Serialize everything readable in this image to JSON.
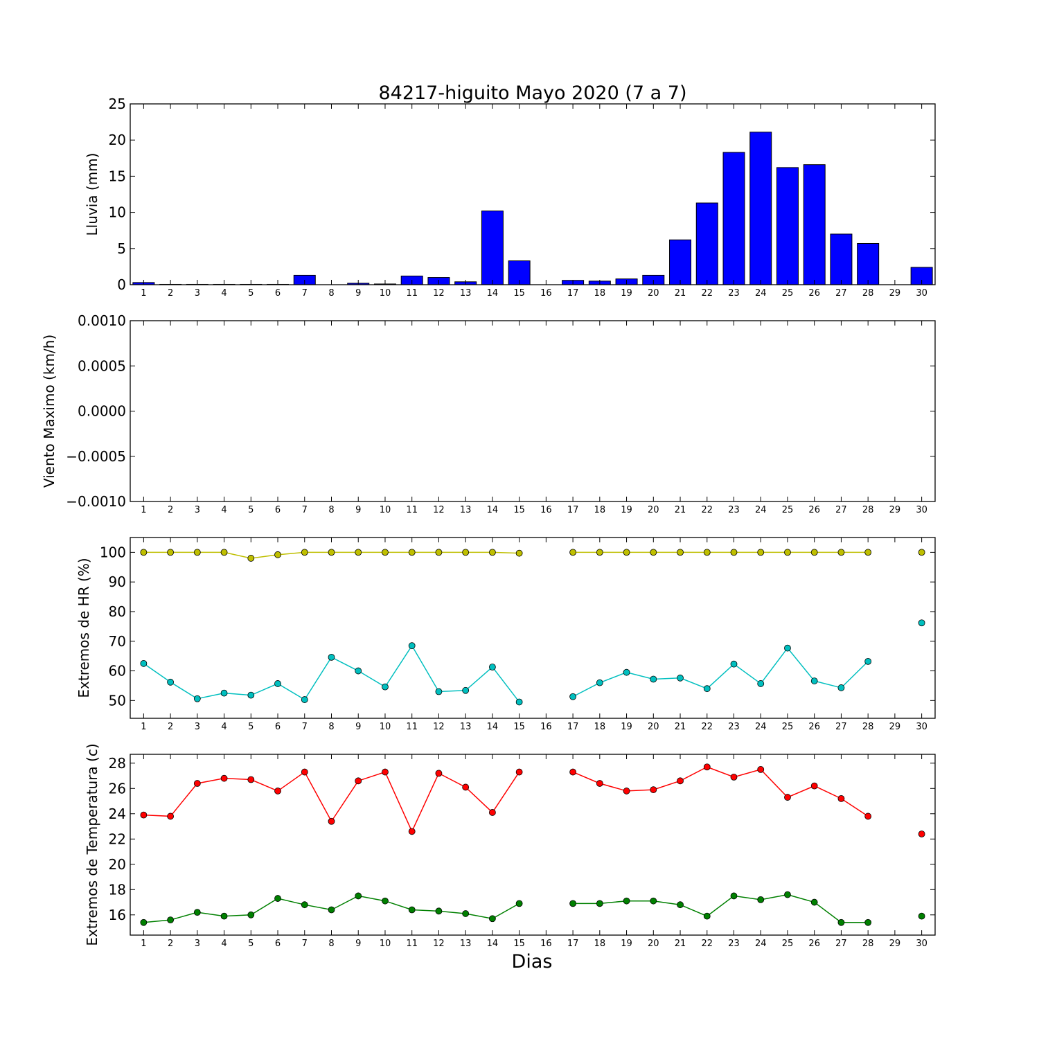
{
  "chart_data": {
    "title": "84217-higuito Mayo 2020  (7 a 7)",
    "xlabel": "Dias",
    "x_ticks": [
      "1",
      "2",
      "3",
      "4",
      "5",
      "6",
      "7",
      "8",
      "9",
      "10",
      "11",
      "12",
      "13",
      "14",
      "15",
      "16",
      "17",
      "18",
      "19",
      "20",
      "21",
      "22",
      "23",
      "24",
      "25",
      "26",
      "27",
      "28",
      "29",
      "30"
    ],
    "colors": {
      "rain": "#0000ff",
      "hr_max": "#bfbf00",
      "hr_min": "#00bfbf",
      "t_max": "#ff0000",
      "t_min": "#008000"
    },
    "panels": [
      {
        "id": "lluvia",
        "type": "bar",
        "ylabel": "Lluvia (mm)",
        "ylim": [
          0,
          25
        ],
        "yticks": [
          0,
          5,
          10,
          15,
          20,
          25
        ],
        "ytick_labels": [
          "0",
          "5",
          "10",
          "15",
          "20",
          "25"
        ],
        "series": [
          {
            "color_key": "rain",
            "x": [
              1,
              2,
              3,
              4,
              5,
              6,
              7,
              8,
              9,
              10,
              11,
              12,
              13,
              14,
              15,
              16,
              17,
              18,
              19,
              20,
              21,
              22,
              23,
              24,
              25,
              26,
              27,
              28,
              29,
              30
            ],
            "values": [
              0.3,
              0.05,
              0.05,
              0.05,
              0.05,
              0.05,
              1.3,
              0,
              0.2,
              0.1,
              1.2,
              1.0,
              0.4,
              10.2,
              3.3,
              0,
              0.6,
              0.5,
              0.8,
              1.3,
              6.2,
              11.3,
              18.3,
              21.1,
              16.2,
              16.6,
              7.0,
              5.7,
              0,
              2.4
            ]
          }
        ]
      },
      {
        "id": "viento",
        "type": "line",
        "ylabel": "Viento Maximo (km/h)",
        "ylim": [
          -0.001,
          0.001
        ],
        "yticks": [
          -0.001,
          -0.0005,
          0,
          0.0005,
          0.001
        ],
        "ytick_labels": [
          "−0.0010",
          "−0.0005",
          "0.0000",
          "0.0005",
          "0.0010"
        ],
        "series": []
      },
      {
        "id": "hr",
        "type": "line",
        "ylabel": "Extremos de HR (%)",
        "ylim": [
          44,
          105
        ],
        "yticks": [
          50,
          60,
          70,
          80,
          90,
          100
        ],
        "ytick_labels": [
          "50",
          "60",
          "70",
          "80",
          "90",
          "100"
        ],
        "series": [
          {
            "color_key": "hr_max",
            "segments": [
              {
                "x": [
                  1,
                  2,
                  3,
                  4,
                  5,
                  6,
                  7,
                  8,
                  9,
                  10,
                  11,
                  12,
                  13,
                  14,
                  15
                ],
                "values": [
                  100,
                  100,
                  100,
                  100,
                  98,
                  99.2,
                  100,
                  100,
                  100,
                  100,
                  100,
                  100,
                  100,
                  100,
                  99.7
                ]
              },
              {
                "x": [
                  17,
                  18,
                  19,
                  20,
                  21,
                  22,
                  23,
                  24,
                  25,
                  26,
                  27,
                  28
                ],
                "values": [
                  100,
                  100,
                  100,
                  100,
                  100,
                  100,
                  100,
                  100,
                  100,
                  100,
                  100,
                  100
                ]
              },
              {
                "x": [
                  30
                ],
                "values": [
                  100
                ]
              }
            ]
          },
          {
            "color_key": "hr_min",
            "segments": [
              {
                "x": [
                  1,
                  2,
                  3,
                  4,
                  5,
                  6,
                  7,
                  8,
                  9,
                  10,
                  11,
                  12,
                  13,
                  14,
                  15
                ],
                "values": [
                  62.5,
                  56.2,
                  50.6,
                  52.5,
                  51.8,
                  55.7,
                  50.3,
                  64.6,
                  60,
                  54.6,
                  68.5,
                  53,
                  53.4,
                  61.3,
                  49.5
                ]
              },
              {
                "x": [
                  17,
                  18,
                  19,
                  20,
                  21,
                  22,
                  23,
                  24,
                  25,
                  26,
                  27,
                  28
                ],
                "values": [
                  51.3,
                  56,
                  59.5,
                  57.2,
                  57.6,
                  54,
                  62.3,
                  55.7,
                  67.7,
                  56.6,
                  54.3,
                  63.2
                ]
              },
              {
                "x": [
                  30
                ],
                "values": [
                  76.2
                ]
              }
            ]
          }
        ]
      },
      {
        "id": "temp",
        "type": "line",
        "ylabel": "Extremos de Temperatura (c)",
        "ylim": [
          14.4,
          28.7
        ],
        "yticks": [
          16,
          18,
          20,
          22,
          24,
          26,
          28
        ],
        "ytick_labels": [
          "16",
          "18",
          "20",
          "22",
          "24",
          "26",
          "28"
        ],
        "series": [
          {
            "color_key": "t_max",
            "segments": [
              {
                "x": [
                  1,
                  2,
                  3,
                  4,
                  5,
                  6,
                  7,
                  8,
                  9,
                  10,
                  11,
                  12,
                  13,
                  14,
                  15
                ],
                "values": [
                  23.9,
                  23.8,
                  26.4,
                  26.8,
                  26.7,
                  25.8,
                  27.3,
                  23.4,
                  26.6,
                  27.3,
                  22.6,
                  27.2,
                  26.1,
                  24.1,
                  27.3
                ]
              },
              {
                "x": [
                  17,
                  18,
                  19,
                  20,
                  21,
                  22,
                  23,
                  24,
                  25,
                  26,
                  27,
                  28
                ],
                "values": [
                  27.3,
                  26.4,
                  25.8,
                  25.9,
                  26.6,
                  27.7,
                  26.9,
                  27.5,
                  25.3,
                  26.2,
                  25.2,
                  23.8
                ]
              },
              {
                "x": [
                  30
                ],
                "values": [
                  22.4
                ]
              }
            ]
          },
          {
            "color_key": "t_min",
            "segments": [
              {
                "x": [
                  1,
                  2,
                  3,
                  4,
                  5,
                  6,
                  7,
                  8,
                  9,
                  10,
                  11,
                  12,
                  13,
                  14,
                  15
                ],
                "values": [
                  15.4,
                  15.6,
                  16.2,
                  15.9,
                  16,
                  17.3,
                  16.8,
                  16.4,
                  17.5,
                  17.1,
                  16.4,
                  16.3,
                  16.1,
                  15.7,
                  16.9
                ]
              },
              {
                "x": [
                  17,
                  18,
                  19,
                  20,
                  21,
                  22,
                  23,
                  24,
                  25,
                  26,
                  27,
                  28
                ],
                "values": [
                  16.9,
                  16.9,
                  17.1,
                  17.1,
                  16.8,
                  15.9,
                  17.5,
                  17.2,
                  17.6,
                  17,
                  15.4,
                  15.4
                ]
              },
              {
                "x": [
                  30
                ],
                "values": [
                  15.9
                ]
              }
            ]
          }
        ]
      }
    ]
  }
}
